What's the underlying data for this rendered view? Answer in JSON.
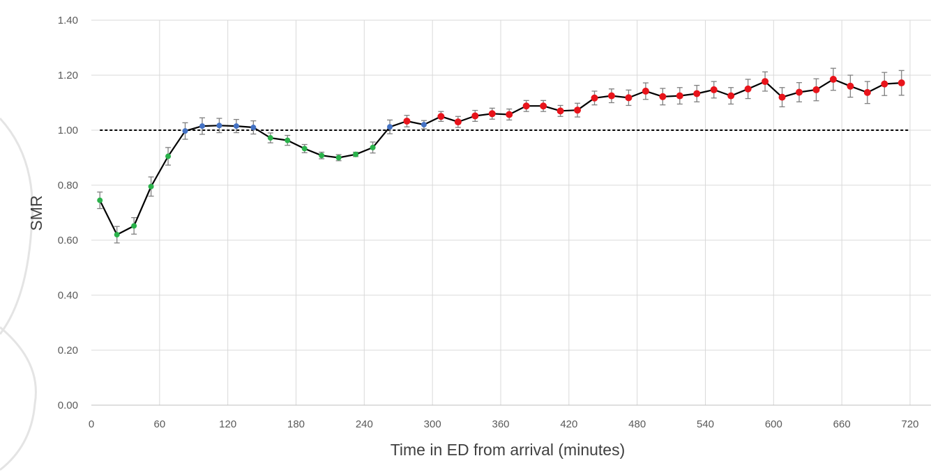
{
  "chart_data": {
    "type": "line",
    "xlabel": "Time in ED from arrival (minutes)",
    "ylabel": "SMR",
    "xlim": [
      0,
      735
    ],
    "ylim": [
      0,
      1.4
    ],
    "x_ticks": [
      "0",
      "60",
      "120",
      "180",
      "240",
      "300",
      "360",
      "420",
      "480",
      "540",
      "600",
      "660",
      "720"
    ],
    "y_ticks": [
      "0.00",
      "0.20",
      "0.40",
      "0.60",
      "0.80",
      "1.00",
      "1.20",
      "1.40"
    ],
    "grid": true,
    "reference_line": {
      "y": 1.0,
      "style": "dashed",
      "color": "#000000"
    },
    "colors": {
      "green": "#2ab24b",
      "blue": "#4472c4",
      "red": "#e8141b",
      "line": "#000000",
      "errorbar": "#7f7f7f"
    },
    "series": [
      {
        "x": [
          7.5,
          22.5,
          37.5,
          52.5,
          67.5,
          82.5,
          97.5,
          112.5,
          127.5,
          142.5,
          157.5,
          172.5,
          187.5,
          202.5,
          217.5,
          232.5,
          247.5,
          262.5,
          277.5,
          292.5,
          307.5,
          322.5,
          337.5,
          352.5,
          367.5,
          382.5,
          397.5,
          412.5,
          427.5,
          442.5,
          457.5,
          472.5,
          487.5,
          502.5,
          517.5,
          532.5,
          547.5,
          562.5,
          577.5,
          592.5,
          607.5,
          622.5,
          637.5,
          652.5,
          667.5,
          682.5,
          697.5,
          712.5
        ],
        "y": [
          0.745,
          0.62,
          0.652,
          0.795,
          0.905,
          0.997,
          1.015,
          1.017,
          1.015,
          1.01,
          0.972,
          0.963,
          0.933,
          0.908,
          0.9,
          0.912,
          0.937,
          1.012,
          1.033,
          1.02,
          1.05,
          1.03,
          1.052,
          1.06,
          1.057,
          1.088,
          1.088,
          1.07,
          1.073,
          1.117,
          1.125,
          1.118,
          1.142,
          1.122,
          1.125,
          1.133,
          1.147,
          1.125,
          1.15,
          1.177,
          1.12,
          1.138,
          1.147,
          1.185,
          1.16,
          1.137,
          1.168,
          1.172
        ],
        "error": [
          0.03,
          0.03,
          0.03,
          0.035,
          0.032,
          0.03,
          0.03,
          0.026,
          0.024,
          0.024,
          0.018,
          0.018,
          0.015,
          0.012,
          0.011,
          0.008,
          0.02,
          0.025,
          0.021,
          0.015,
          0.018,
          0.02,
          0.02,
          0.02,
          0.02,
          0.02,
          0.02,
          0.02,
          0.025,
          0.025,
          0.025,
          0.028,
          0.03,
          0.03,
          0.03,
          0.03,
          0.03,
          0.03,
          0.035,
          0.035,
          0.035,
          0.035,
          0.04,
          0.04,
          0.04,
          0.04,
          0.042,
          0.045
        ],
        "point_colors": [
          "green",
          "green",
          "green",
          "green",
          "green",
          "blue",
          "blue",
          "blue",
          "blue",
          "blue",
          "green",
          "green",
          "green",
          "green",
          "green",
          "green",
          "green",
          "blue",
          "red",
          "blue",
          "red",
          "red",
          "red",
          "red",
          "red",
          "red",
          "red",
          "red",
          "red",
          "red",
          "red",
          "red",
          "red",
          "red",
          "red",
          "red",
          "red",
          "red",
          "red",
          "red",
          "red",
          "red",
          "red",
          "red",
          "red",
          "red",
          "red",
          "red"
        ]
      }
    ]
  }
}
